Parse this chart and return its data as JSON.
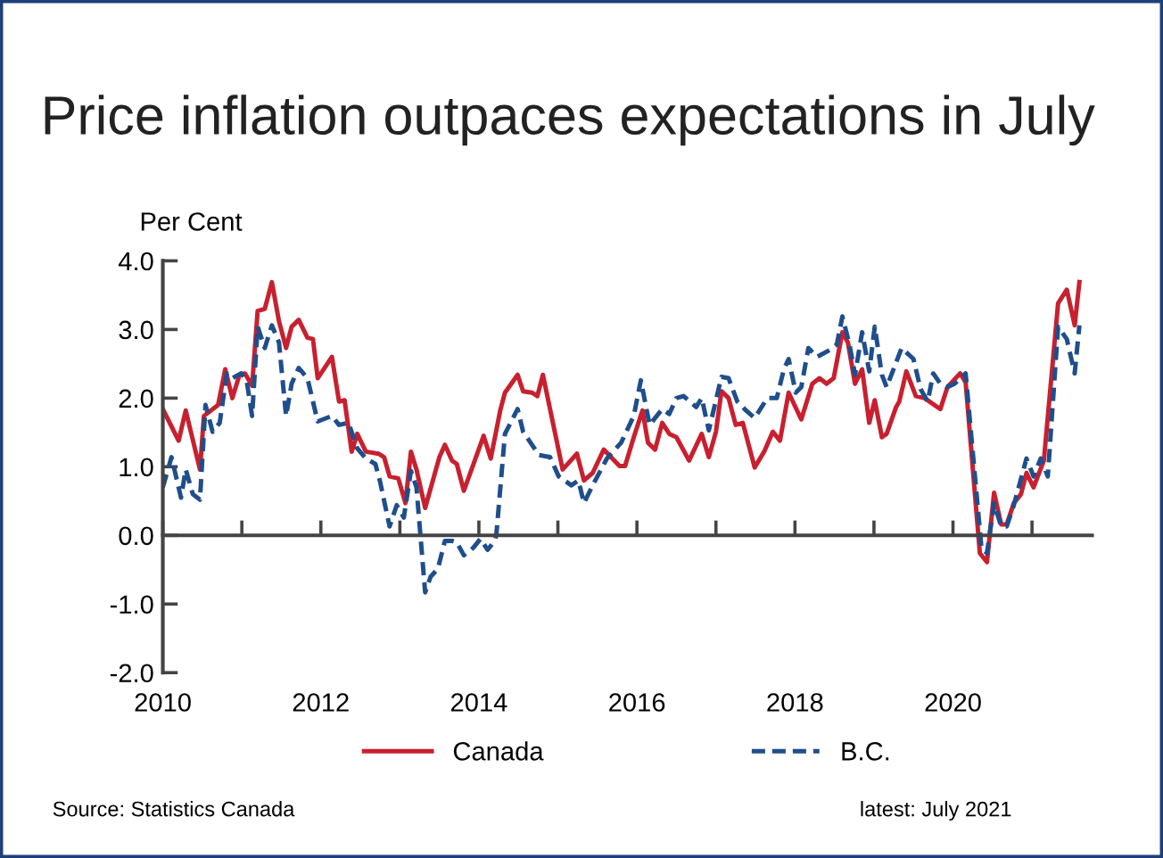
{
  "chart_data": {
    "type": "line",
    "title": "Price inflation outpaces expectations in July",
    "ylabel": "Per Cent",
    "xlim": [
      2010,
      2021.76
    ],
    "xticks": [
      {
        "value": 2010,
        "label": "2010"
      },
      {
        "value": 2011,
        "label": null
      },
      {
        "value": 2012,
        "label": "2012"
      },
      {
        "value": 2013,
        "label": null
      },
      {
        "value": 2014,
        "label": "2014"
      },
      {
        "value": 2015,
        "label": null
      },
      {
        "value": 2016,
        "label": "2016"
      },
      {
        "value": 2017,
        "label": null
      },
      {
        "value": 2018,
        "label": "2018"
      },
      {
        "value": 2019,
        "label": null
      },
      {
        "value": 2020,
        "label": "2020"
      },
      {
        "value": 2021,
        "label": null
      }
    ],
    "ylim": [
      -2,
      4
    ],
    "yticks": [
      {
        "value": -2,
        "label": "-2.0"
      },
      {
        "value": -1,
        "label": "-1.0"
      },
      {
        "value": 0,
        "label": "0.0"
      },
      {
        "value": 1,
        "label": "1.0"
      },
      {
        "value": 2,
        "label": "2.0"
      },
      {
        "value": 3,
        "label": "3.0"
      },
      {
        "value": 4,
        "label": "4.0"
      }
    ],
    "legend": "bottom",
    "marker": "none",
    "annotations": [
      "Source: Statistics Canada",
      "latest: July 2021"
    ],
    "series": [
      {
        "name": "Canada",
        "color": "#c8202f",
        "line_style": "solid",
        "x": [
          2010.0,
          2010.2,
          2010.29,
          2010.47,
          2010.52,
          2010.7,
          2010.79,
          2010.88,
          2010.97,
          2011.04,
          2011.13,
          2011.2,
          2011.29,
          2011.38,
          2011.47,
          2011.56,
          2011.63,
          2011.72,
          2011.83,
          2011.9,
          2011.96,
          2012.14,
          2012.23,
          2012.3,
          2012.39,
          2012.46,
          2012.57,
          2012.73,
          2012.8,
          2012.87,
          2012.98,
          2013.07,
          2013.14,
          2013.21,
          2013.32,
          2013.5,
          2013.57,
          2013.66,
          2013.72,
          2013.81,
          2014.06,
          2014.15,
          2014.27,
          2014.33,
          2014.49,
          2014.56,
          2014.67,
          2014.74,
          2014.81,
          2015.06,
          2015.24,
          2015.33,
          2015.44,
          2015.58,
          2015.78,
          2015.85,
          2015.96,
          2016.07,
          2016.14,
          2016.23,
          2016.32,
          2016.41,
          2016.5,
          2016.66,
          2016.82,
          2016.91,
          2017.0,
          2017.07,
          2017.16,
          2017.25,
          2017.34,
          2017.49,
          2017.61,
          2017.72,
          2017.81,
          2017.92,
          2018.08,
          2018.22,
          2018.31,
          2018.4,
          2018.49,
          2018.6,
          2018.67,
          2018.76,
          2018.85,
          2018.94,
          2019.01,
          2019.1,
          2019.16,
          2019.28,
          2019.32,
          2019.41,
          2019.53,
          2019.64,
          2019.84,
          2019.93,
          2020.09,
          2020.16,
          2020.34,
          2020.43,
          2020.52,
          2020.61,
          2020.68,
          2020.77,
          2020.86,
          2020.93,
          2021.02,
          2021.15,
          2021.33,
          2021.44,
          2021.54,
          2021.6
        ],
        "values": [
          1.84,
          1.38,
          1.82,
          0.96,
          1.74,
          1.9,
          2.42,
          2.0,
          2.34,
          2.36,
          2.18,
          3.27,
          3.3,
          3.69,
          3.12,
          2.73,
          3.04,
          3.14,
          2.88,
          2.86,
          2.29,
          2.6,
          1.95,
          1.97,
          1.22,
          1.48,
          1.22,
          1.19,
          1.14,
          0.86,
          0.83,
          0.47,
          1.22,
          0.96,
          0.4,
          1.14,
          1.32,
          1.09,
          1.04,
          0.65,
          1.45,
          1.12,
          1.82,
          2.08,
          2.34,
          2.1,
          2.08,
          2.03,
          2.34,
          0.96,
          1.19,
          0.8,
          0.91,
          1.25,
          1.01,
          1.01,
          1.43,
          1.82,
          1.35,
          1.25,
          1.64,
          1.48,
          1.43,
          1.09,
          1.48,
          1.14,
          1.51,
          2.1,
          2.0,
          1.61,
          1.64,
          0.99,
          1.22,
          1.51,
          1.38,
          2.08,
          1.69,
          2.21,
          2.29,
          2.21,
          2.29,
          2.96,
          2.81,
          2.21,
          2.42,
          1.64,
          1.97,
          1.43,
          1.48,
          1.87,
          1.95,
          2.39,
          2.03,
          2.0,
          1.84,
          2.16,
          2.36,
          2.23,
          -0.26,
          -0.39,
          0.62,
          0.16,
          0.16,
          0.47,
          0.6,
          0.91,
          0.7,
          1.09,
          3.38,
          3.58,
          3.06,
          3.69
        ]
      },
      {
        "name": "B.C.",
        "color": "#1f4e8c",
        "line_style": "dashed",
        "x": [
          2010.0,
          2010.11,
          2010.23,
          2010.29,
          2010.38,
          2010.47,
          2010.54,
          2010.63,
          2010.72,
          2010.81,
          2010.88,
          2010.99,
          2011.06,
          2011.13,
          2011.2,
          2011.29,
          2011.38,
          2011.47,
          2011.56,
          2011.63,
          2011.72,
          2011.83,
          2011.96,
          2012.14,
          2012.23,
          2012.35,
          2012.46,
          2012.57,
          2012.69,
          2012.75,
          2012.87,
          2012.96,
          2013.05,
          2013.14,
          2013.21,
          2013.32,
          2013.39,
          2013.48,
          2013.57,
          2013.66,
          2013.72,
          2013.81,
          2013.93,
          2014.02,
          2014.11,
          2014.2,
          2014.22,
          2014.33,
          2014.49,
          2014.56,
          2014.76,
          2014.9,
          2015.01,
          2015.17,
          2015.26,
          2015.33,
          2015.44,
          2015.62,
          2015.8,
          2015.96,
          2016.05,
          2016.16,
          2016.32,
          2016.41,
          2016.5,
          2016.59,
          2016.75,
          2016.82,
          2016.91,
          2017.07,
          2017.16,
          2017.27,
          2017.38,
          2017.49,
          2017.65,
          2017.77,
          2017.86,
          2017.92,
          2018.01,
          2018.08,
          2018.17,
          2018.28,
          2018.44,
          2018.53,
          2018.6,
          2018.69,
          2018.76,
          2018.85,
          2018.94,
          2019.01,
          2019.1,
          2019.16,
          2019.35,
          2019.5,
          2019.59,
          2019.68,
          2019.75,
          2019.84,
          2019.93,
          2020.02,
          2020.16,
          2020.36,
          2020.43,
          2020.52,
          2020.61,
          2020.68,
          2020.77,
          2020.93,
          2021.02,
          2021.11,
          2021.2,
          2021.33,
          2021.44,
          2021.54,
          2021.6
        ],
        "values": [
          0.7,
          1.14,
          0.55,
          0.96,
          0.6,
          0.52,
          1.9,
          1.51,
          1.64,
          2.36,
          2.29,
          2.36,
          2.26,
          1.74,
          3.04,
          2.73,
          3.06,
          2.81,
          1.74,
          2.21,
          2.44,
          2.29,
          1.66,
          1.74,
          1.61,
          1.64,
          1.27,
          1.12,
          1.04,
          0.78,
          0.13,
          0.44,
          0.26,
          0.94,
          0.7,
          -0.83,
          -0.6,
          -0.49,
          -0.08,
          -0.08,
          -0.1,
          -0.29,
          -0.18,
          -0.05,
          -0.21,
          -0.08,
          0.0,
          1.48,
          1.84,
          1.51,
          1.17,
          1.14,
          0.86,
          0.73,
          0.8,
          0.47,
          0.73,
          1.12,
          1.35,
          1.74,
          2.26,
          1.61,
          1.84,
          1.77,
          2.0,
          2.03,
          1.87,
          2.0,
          1.53,
          2.31,
          2.29,
          1.95,
          1.82,
          1.71,
          2.0,
          2.0,
          2.42,
          2.57,
          2.08,
          2.16,
          2.73,
          2.6,
          2.7,
          2.78,
          3.19,
          2.78,
          2.34,
          2.96,
          2.39,
          3.04,
          2.34,
          2.16,
          2.73,
          2.57,
          2.13,
          1.95,
          2.36,
          2.21,
          2.16,
          2.21,
          2.36,
          -0.18,
          -0.26,
          0.47,
          0.13,
          0.13,
          0.44,
          1.12,
          0.86,
          1.12,
          0.86,
          3.04,
          2.86,
          2.36,
          3.06
        ]
      }
    ]
  }
}
